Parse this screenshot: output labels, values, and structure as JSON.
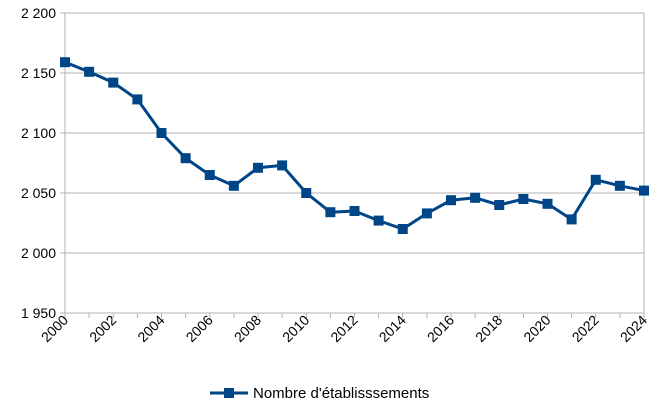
{
  "chart_data": {
    "type": "line",
    "title": "",
    "xlabel": "",
    "ylabel": "",
    "x": [
      2000,
      2001,
      2002,
      2003,
      2004,
      2005,
      2006,
      2007,
      2008,
      2009,
      2010,
      2011,
      2012,
      2013,
      2014,
      2015,
      2016,
      2017,
      2018,
      2019,
      2020,
      2021,
      2022,
      2023,
      2024
    ],
    "x_tick_labels": [
      "2000",
      "2002",
      "2004",
      "2006",
      "2008",
      "2010",
      "2012",
      "2014",
      "2016",
      "2018",
      "2020",
      "2022",
      "2024"
    ],
    "y_tick_labels": [
      "2 200",
      "2 150",
      "2 100",
      "2 050",
      "2 000",
      "1 950"
    ],
    "ylim": [
      1950,
      2200
    ],
    "y_ticks": [
      2200,
      2150,
      2100,
      2050,
      2000,
      1950
    ],
    "grid": true,
    "legend_position": "bottom",
    "series": [
      {
        "name": "Nombre d'établisssements",
        "color": "#004586",
        "marker": "square",
        "values": [
          2159,
          2151,
          2142,
          2128,
          2100,
          2079,
          2065,
          2056,
          2071,
          2073,
          2050,
          2034,
          2035,
          2027,
          2020,
          2033,
          2044,
          2046,
          2040,
          2045,
          2041,
          2028,
          2061,
          2056,
          2052
        ]
      }
    ]
  }
}
